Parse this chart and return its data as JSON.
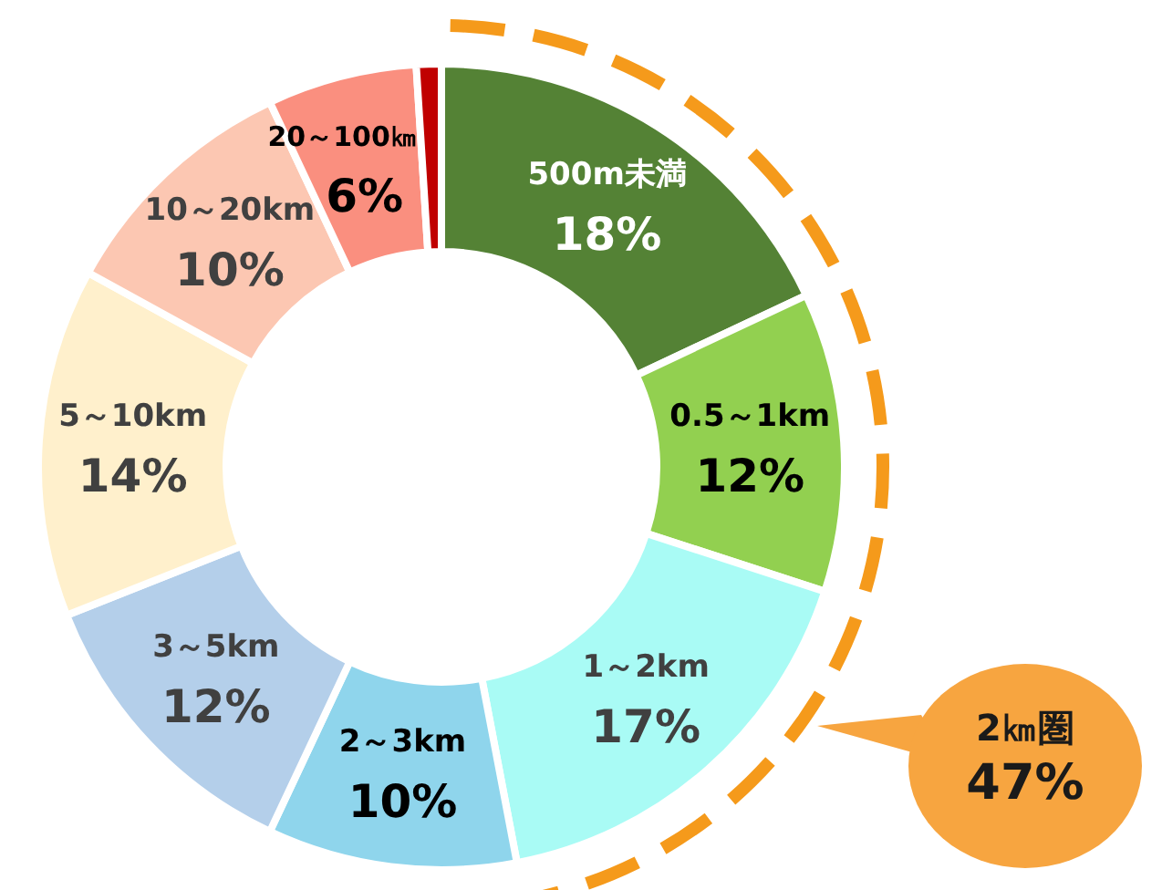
{
  "chart_data": {
    "type": "donut",
    "categories": [
      "500m未満",
      "0.5～1km",
      "1～2km",
      "2～3km",
      "3～5km",
      "5～10km",
      "10～20km",
      "20～100㎞",
      null
    ],
    "values": [
      18,
      12,
      17,
      10,
      12,
      14,
      10,
      6,
      1
    ],
    "colors": [
      "#548235",
      "#92d050",
      "#a9fbf5",
      "#8fd5ec",
      "#b4cfea",
      "#fff0cc",
      "#fcc7b2",
      "#fa8f7f",
      "#c00000"
    ],
    "value_labels": [
      "18%",
      "12%",
      "17%",
      "10%",
      "12%",
      "14%",
      "10%",
      "6%",
      null
    ],
    "annotations": [
      "2㎞圏\n47%"
    ]
  }
}
